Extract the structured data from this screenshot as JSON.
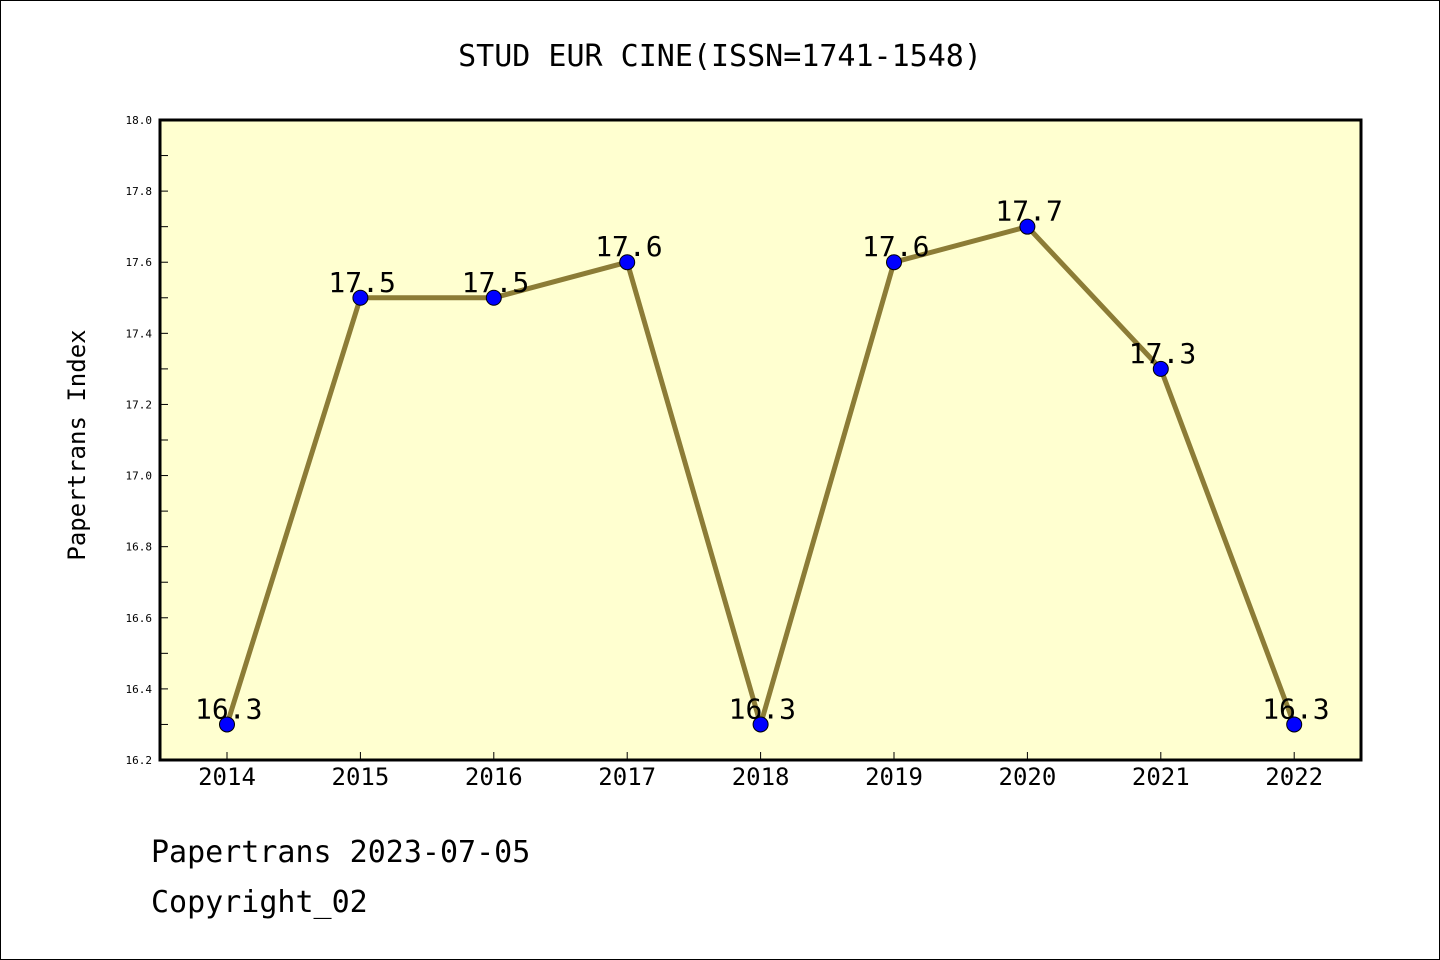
{
  "chart_data": {
    "type": "line",
    "title": "STUD EUR CINE(ISSN=1741-1548)",
    "xlabel": "",
    "ylabel": "Papertrans Index",
    "categories": [
      "2014",
      "2015",
      "2016",
      "2017",
      "2018",
      "2019",
      "2020",
      "2021",
      "2022"
    ],
    "series": [
      {
        "values": [
          16.3,
          17.5,
          17.5,
          17.6,
          16.3,
          17.6,
          17.7,
          17.3,
          16.3
        ],
        "labels": [
          "16.3",
          "17.5",
          "17.5",
          "17.6",
          "16.3",
          "17.6",
          "17.7",
          "17.3",
          "16.3"
        ],
        "line_color": "#8c7c36",
        "marker_color": "#0000ff"
      }
    ],
    "ylim": [
      16.2,
      18.0
    ],
    "yticks": [
      "16.2",
      "16.4",
      "16.6",
      "16.8",
      "17.0",
      "17.2",
      "17.4",
      "17.6",
      "17.8",
      "18.0"
    ],
    "plot_background": "#ffffd0",
    "grid": false,
    "legend": "none"
  },
  "footer": {
    "line1": "Papertrans 2023-07-05",
    "line2": "Copyright_02"
  }
}
